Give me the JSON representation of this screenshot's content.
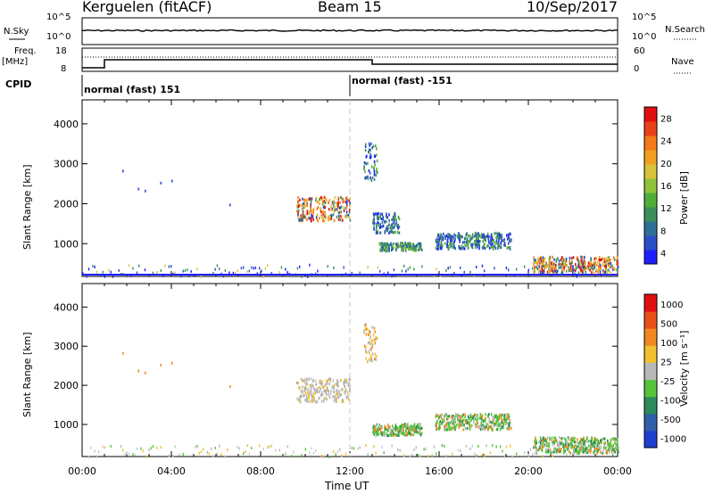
{
  "header": {
    "station": "Kerguelen (fitACF)",
    "beam": "Beam 15",
    "date": "10/Sep/2017"
  },
  "side_labels": {
    "nsky": "N.Sky",
    "nsearch": "N.Search",
    "freq": "Freq.",
    "freq_unit": "[MHz]",
    "nave": "Nave",
    "cpid": "CPID"
  },
  "noise_panel": {
    "left_ticks": [
      "10^5",
      "10^0"
    ],
    "right_ticks": [
      "10^5",
      "10^0"
    ]
  },
  "freq_panel": {
    "left_ticks": [
      "18",
      "8"
    ],
    "right_ticks": [
      "60",
      "0"
    ]
  },
  "cpid_segments": [
    {
      "label": "normal (fast) 151",
      "start_h": 0,
      "end_h": 12
    },
    {
      "label": "normal (fast) -151",
      "start_h": 12,
      "end_h": 24
    }
  ],
  "chart_data": [
    {
      "type": "heatmap",
      "name": "power",
      "ylabel": "Slant Range [km]",
      "xlim": [
        0,
        24
      ],
      "ylim": [
        180,
        4600
      ],
      "y_ticks": [
        1000,
        2000,
        3000,
        4000
      ],
      "colorbar": {
        "label": "Power [dB]",
        "ticks": [
          "28",
          "24",
          "20",
          "16",
          "12",
          "8",
          "4"
        ],
        "colors": [
          "#1f1fff",
          "#2a4fc8",
          "#2e6f96",
          "#3a8f5a",
          "#4fae3a",
          "#8fc43a",
          "#d7c43a",
          "#f0a020",
          "#f57a1a",
          "#e8401a",
          "#e01010"
        ]
      },
      "patches": [
        {
          "t0": 9.6,
          "t1": 12.0,
          "r0": 1600,
          "r1": 2200,
          "level": "high"
        },
        {
          "t0": 12.6,
          "t1": 13.2,
          "r0": 2600,
          "r1": 3600,
          "level": "low"
        },
        {
          "t0": 13.0,
          "t1": 14.2,
          "r0": 1300,
          "r1": 1800,
          "level": "low"
        },
        {
          "t0": 13.3,
          "t1": 15.2,
          "r0": 850,
          "r1": 1050,
          "level": "mid"
        },
        {
          "t0": 15.8,
          "t1": 19.2,
          "r0": 900,
          "r1": 1300,
          "level": "low"
        },
        {
          "t0": 20.2,
          "t1": 24.0,
          "r0": 300,
          "r1": 700,
          "level": "high"
        }
      ]
    },
    {
      "type": "heatmap",
      "name": "velocity",
      "ylabel": "Slant Range [km]",
      "xlabel": "Time UT",
      "xlim": [
        0,
        24
      ],
      "ylim": [
        180,
        4600
      ],
      "x_ticks": [
        "00:00",
        "04:00",
        "08:00",
        "12:00",
        "16:00",
        "20:00",
        "00:00"
      ],
      "y_ticks": [
        1000,
        2000,
        3000,
        4000
      ],
      "colorbar": {
        "label": "Velocity [m s⁻¹]",
        "ticks": [
          "1000",
          "500",
          "100",
          "25",
          "-25",
          "-100",
          "-500",
          "-1000"
        ],
        "colors": [
          "#1f3fd0",
          "#2e5fa8",
          "#2e8a5a",
          "#55c43a",
          "#b8b8b8",
          "#f0c030",
          "#f08a20",
          "#e85018",
          "#e01010"
        ]
      },
      "patches": [
        {
          "t0": 9.6,
          "t1": 12.0,
          "r0": 1600,
          "r1": 2200,
          "level": "gray"
        },
        {
          "t0": 12.6,
          "t1": 13.2,
          "r0": 2600,
          "r1": 3600,
          "level": "orange"
        },
        {
          "t0": 13.0,
          "t1": 15.2,
          "r0": 750,
          "r1": 1050,
          "level": "green"
        },
        {
          "t0": 15.8,
          "t1": 19.2,
          "r0": 900,
          "r1": 1300,
          "level": "green"
        },
        {
          "t0": 20.2,
          "t1": 24.0,
          "r0": 300,
          "r1": 700,
          "level": "green"
        }
      ]
    }
  ]
}
